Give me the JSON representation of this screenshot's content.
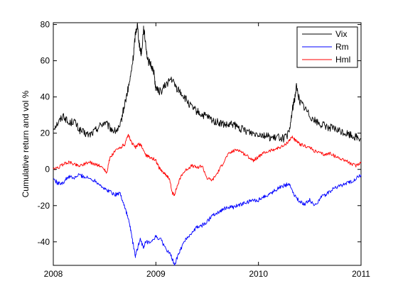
{
  "chart_data": {
    "type": "line",
    "title": "",
    "xlabel": "",
    "ylabel": "Cumulative return and vol %",
    "xlim": [
      2008,
      2011
    ],
    "ylim": [
      -53,
      81
    ],
    "xticks": [
      "2008",
      "2009",
      "2010",
      "2011"
    ],
    "yticks": [
      "-40",
      "-20",
      "0",
      "20",
      "40",
      "60",
      "80"
    ],
    "grid": false,
    "legend_position": "top-right",
    "series": [
      {
        "name": "Vix",
        "color": "#000000",
        "points": [
          [
            2008.0,
            23
          ],
          [
            2008.05,
            26
          ],
          [
            2008.1,
            30
          ],
          [
            2008.15,
            25
          ],
          [
            2008.2,
            27
          ],
          [
            2008.25,
            22
          ],
          [
            2008.3,
            20
          ],
          [
            2008.35,
            19
          ],
          [
            2008.4,
            21
          ],
          [
            2008.45,
            24
          ],
          [
            2008.5,
            26
          ],
          [
            2008.55,
            23
          ],
          [
            2008.6,
            21
          ],
          [
            2008.65,
            23
          ],
          [
            2008.68,
            32
          ],
          [
            2008.72,
            42
          ],
          [
            2008.75,
            50
          ],
          [
            2008.78,
            62
          ],
          [
            2008.8,
            75
          ],
          [
            2008.82,
            80
          ],
          [
            2008.84,
            68
          ],
          [
            2008.86,
            64
          ],
          [
            2008.88,
            78
          ],
          [
            2008.9,
            70
          ],
          [
            2008.92,
            60
          ],
          [
            2008.95,
            58
          ],
          [
            2008.98,
            54
          ],
          [
            2009.0,
            44
          ],
          [
            2009.05,
            43
          ],
          [
            2009.1,
            47
          ],
          [
            2009.15,
            50
          ],
          [
            2009.2,
            45
          ],
          [
            2009.25,
            42
          ],
          [
            2009.3,
            38
          ],
          [
            2009.35,
            34
          ],
          [
            2009.4,
            32
          ],
          [
            2009.45,
            30
          ],
          [
            2009.5,
            29
          ],
          [
            2009.55,
            27
          ],
          [
            2009.6,
            26
          ],
          [
            2009.65,
            25
          ],
          [
            2009.7,
            24
          ],
          [
            2009.75,
            25
          ],
          [
            2009.8,
            23
          ],
          [
            2009.85,
            22
          ],
          [
            2009.9,
            21
          ],
          [
            2009.95,
            20
          ],
          [
            2010.0,
            20
          ],
          [
            2010.05,
            19
          ],
          [
            2010.1,
            18
          ],
          [
            2010.15,
            17
          ],
          [
            2010.2,
            18
          ],
          [
            2010.25,
            17
          ],
          [
            2010.3,
            20
          ],
          [
            2010.33,
            33
          ],
          [
            2010.35,
            38
          ],
          [
            2010.37,
            46
          ],
          [
            2010.4,
            38
          ],
          [
            2010.45,
            34
          ],
          [
            2010.5,
            30
          ],
          [
            2010.55,
            27
          ],
          [
            2010.6,
            25
          ],
          [
            2010.65,
            24
          ],
          [
            2010.7,
            23
          ],
          [
            2010.75,
            22
          ],
          [
            2010.8,
            21
          ],
          [
            2010.85,
            20
          ],
          [
            2010.9,
            19
          ],
          [
            2010.95,
            18
          ],
          [
            2011.0,
            17
          ]
        ]
      },
      {
        "name": "Rm",
        "color": "#0000ff",
        "points": [
          [
            2008.0,
            -5
          ],
          [
            2008.05,
            -8
          ],
          [
            2008.1,
            -7
          ],
          [
            2008.15,
            -4
          ],
          [
            2008.2,
            -5
          ],
          [
            2008.25,
            -3
          ],
          [
            2008.3,
            -4
          ],
          [
            2008.35,
            -5
          ],
          [
            2008.4,
            -6
          ],
          [
            2008.45,
            -8
          ],
          [
            2008.5,
            -11
          ],
          [
            2008.55,
            -12
          ],
          [
            2008.6,
            -14
          ],
          [
            2008.65,
            -13
          ],
          [
            2008.68,
            -18
          ],
          [
            2008.72,
            -25
          ],
          [
            2008.75,
            -32
          ],
          [
            2008.78,
            -42
          ],
          [
            2008.8,
            -48
          ],
          [
            2008.82,
            -44
          ],
          [
            2008.85,
            -38
          ],
          [
            2008.88,
            -44
          ],
          [
            2008.9,
            -40
          ],
          [
            2008.95,
            -41
          ],
          [
            2009.0,
            -37
          ],
          [
            2009.05,
            -39
          ],
          [
            2009.1,
            -44
          ],
          [
            2009.15,
            -48
          ],
          [
            2009.18,
            -53
          ],
          [
            2009.22,
            -47
          ],
          [
            2009.25,
            -43
          ],
          [
            2009.3,
            -38
          ],
          [
            2009.35,
            -35
          ],
          [
            2009.4,
            -32
          ],
          [
            2009.45,
            -31
          ],
          [
            2009.5,
            -29
          ],
          [
            2009.55,
            -25
          ],
          [
            2009.6,
            -24
          ],
          [
            2009.65,
            -22
          ],
          [
            2009.7,
            -21
          ],
          [
            2009.75,
            -21
          ],
          [
            2009.8,
            -20
          ],
          [
            2009.85,
            -19
          ],
          [
            2009.9,
            -18
          ],
          [
            2009.95,
            -17
          ],
          [
            2010.0,
            -17
          ],
          [
            2010.05,
            -15
          ],
          [
            2010.1,
            -14
          ],
          [
            2010.15,
            -12
          ],
          [
            2010.2,
            -10
          ],
          [
            2010.25,
            -9
          ],
          [
            2010.3,
            -8
          ],
          [
            2010.35,
            -14
          ],
          [
            2010.4,
            -18
          ],
          [
            2010.45,
            -19
          ],
          [
            2010.5,
            -17
          ],
          [
            2010.55,
            -20
          ],
          [
            2010.6,
            -16
          ],
          [
            2010.65,
            -14
          ],
          [
            2010.7,
            -12
          ],
          [
            2010.75,
            -10
          ],
          [
            2010.8,
            -9
          ],
          [
            2010.85,
            -8
          ],
          [
            2010.9,
            -7
          ],
          [
            2010.95,
            -5
          ],
          [
            2011.0,
            -3
          ]
        ]
      },
      {
        "name": "Hml",
        "color": "#ff0000",
        "points": [
          [
            2008.0,
            0
          ],
          [
            2008.05,
            1
          ],
          [
            2008.1,
            3
          ],
          [
            2008.15,
            4
          ],
          [
            2008.2,
            3
          ],
          [
            2008.25,
            2
          ],
          [
            2008.3,
            3
          ],
          [
            2008.35,
            4
          ],
          [
            2008.4,
            3
          ],
          [
            2008.45,
            2
          ],
          [
            2008.5,
            0
          ],
          [
            2008.52,
            -2
          ],
          [
            2008.55,
            6
          ],
          [
            2008.6,
            10
          ],
          [
            2008.65,
            12
          ],
          [
            2008.7,
            14
          ],
          [
            2008.73,
            19
          ],
          [
            2008.76,
            15
          ],
          [
            2008.8,
            12
          ],
          [
            2008.83,
            14
          ],
          [
            2008.86,
            13
          ],
          [
            2008.9,
            8
          ],
          [
            2008.93,
            7
          ],
          [
            2008.97,
            6
          ],
          [
            2009.0,
            5
          ],
          [
            2009.03,
            1
          ],
          [
            2009.06,
            -1
          ],
          [
            2009.1,
            -3
          ],
          [
            2009.13,
            -5
          ],
          [
            2009.16,
            -13
          ],
          [
            2009.18,
            -14
          ],
          [
            2009.21,
            -9
          ],
          [
            2009.25,
            -3
          ],
          [
            2009.3,
            0
          ],
          [
            2009.35,
            2
          ],
          [
            2009.4,
            1
          ],
          [
            2009.45,
            2
          ],
          [
            2009.5,
            -5
          ],
          [
            2009.55,
            -6
          ],
          [
            2009.6,
            -2
          ],
          [
            2009.65,
            3
          ],
          [
            2009.7,
            8
          ],
          [
            2009.75,
            10
          ],
          [
            2009.8,
            11
          ],
          [
            2009.85,
            9
          ],
          [
            2009.9,
            7
          ],
          [
            2009.95,
            5
          ],
          [
            2010.0,
            7
          ],
          [
            2010.05,
            9
          ],
          [
            2010.1,
            10
          ],
          [
            2010.15,
            11
          ],
          [
            2010.2,
            12
          ],
          [
            2010.25,
            13
          ],
          [
            2010.3,
            16
          ],
          [
            2010.33,
            18
          ],
          [
            2010.36,
            16
          ],
          [
            2010.4,
            14
          ],
          [
            2010.45,
            13
          ],
          [
            2010.5,
            12
          ],
          [
            2010.55,
            10
          ],
          [
            2010.6,
            9
          ],
          [
            2010.65,
            8
          ],
          [
            2010.7,
            9
          ],
          [
            2010.75,
            7
          ],
          [
            2010.8,
            6
          ],
          [
            2010.85,
            5
          ],
          [
            2010.9,
            3
          ],
          [
            2010.95,
            2
          ],
          [
            2011.0,
            4
          ]
        ]
      }
    ]
  }
}
